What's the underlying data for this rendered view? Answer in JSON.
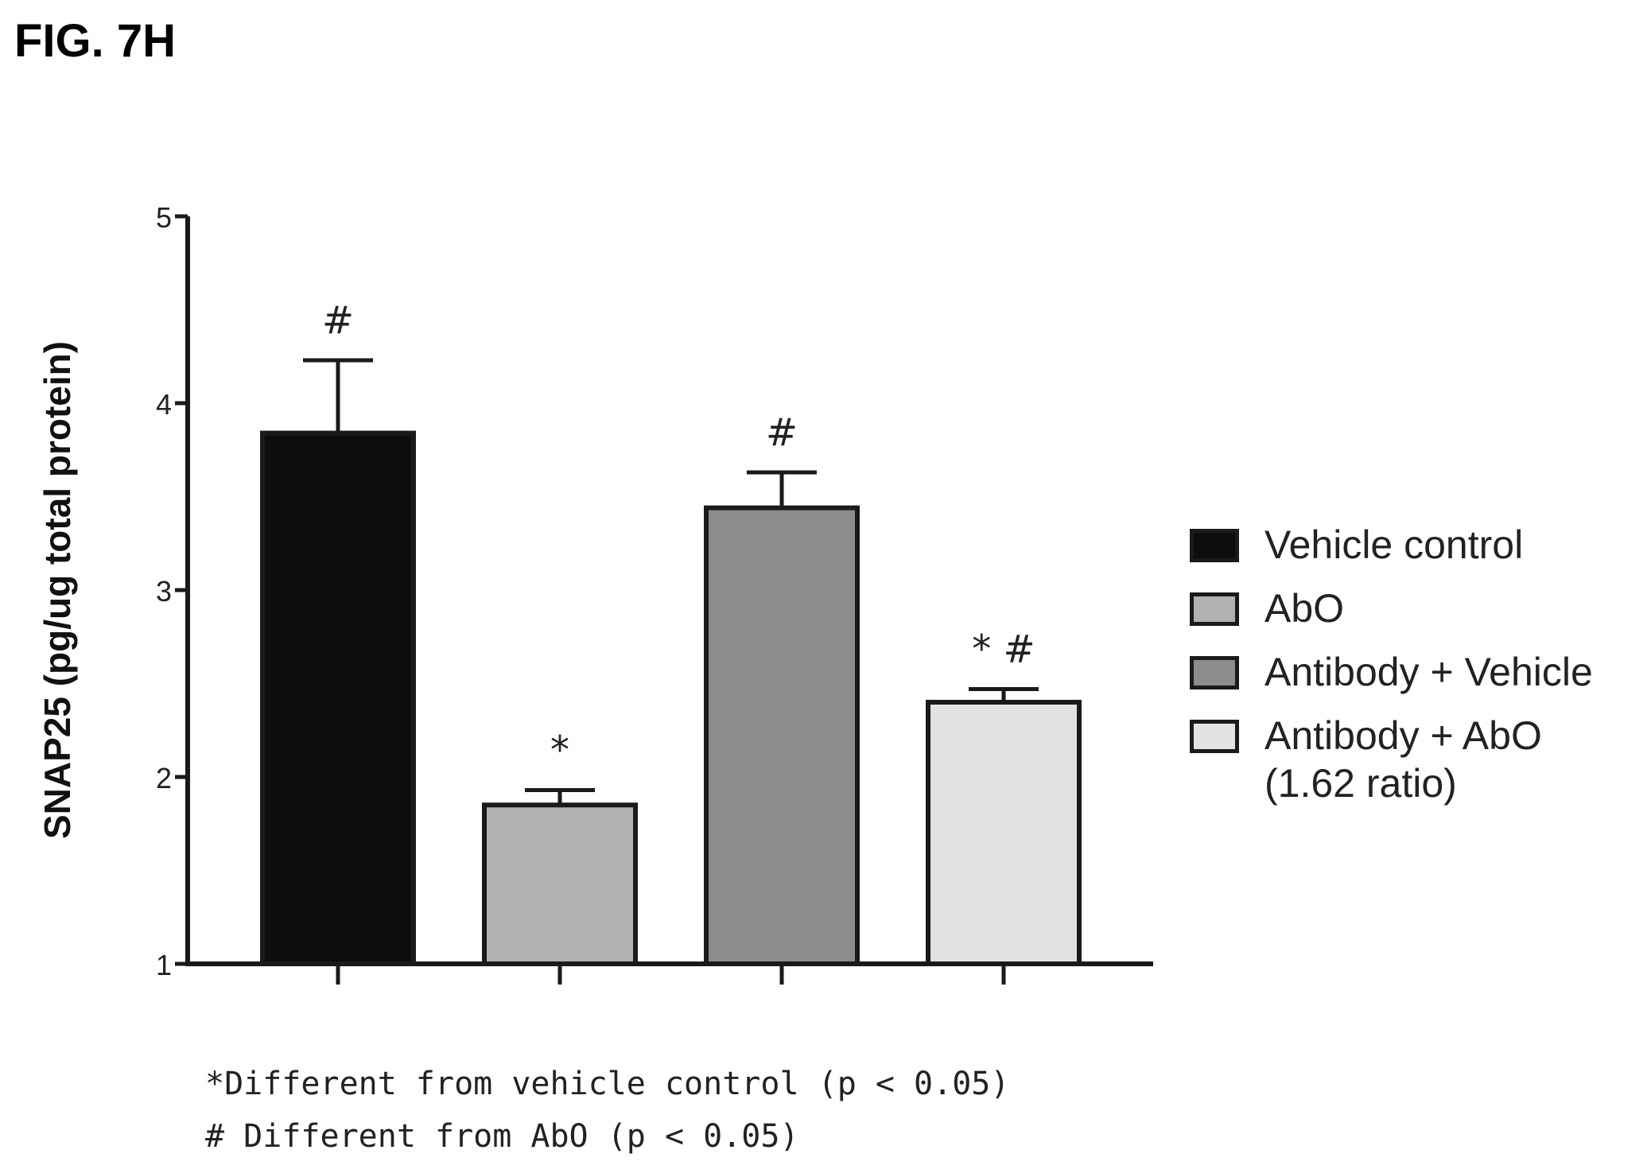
{
  "figure_label": "FIG. 7H",
  "colors": {
    "vehicle_control": "#0d0d0d",
    "abo": "#b2b2b2",
    "antibody_vehicle": "#8c8c8c",
    "antibody_abo": "#e2e2e2",
    "axis": "#1a1a1a"
  },
  "chart_data": {
    "type": "bar",
    "categories": [
      "Vehicle control",
      "AbO",
      "Antibody + Vehicle",
      "Antibody + AbO\n(1.62 ratio)"
    ],
    "values": [
      3.84,
      1.85,
      3.44,
      2.4
    ],
    "errors": [
      0.39,
      0.08,
      0.19,
      0.07
    ],
    "annotations": [
      "#",
      "*",
      "#",
      "* #"
    ],
    "ylabel": "SNAP25 (pg/ug total protein)",
    "ylim": [
      1,
      5
    ],
    "yticks": [
      "1",
      "2",
      "3",
      "4",
      "5"
    ],
    "grid": false,
    "legend_position": "right",
    "footnotes": [
      "*Different from vehicle control (p < 0.05)",
      "# Different from AbO (p < 0.05)"
    ]
  }
}
